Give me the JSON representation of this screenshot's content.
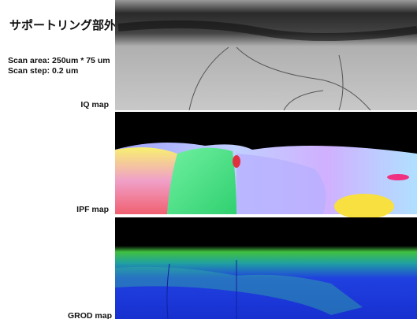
{
  "title": "サポートリング部外周",
  "scan_info": {
    "area": "Scan area: 250um * 75 um",
    "step": "Scan step: 0.2 um"
  },
  "panels": [
    {
      "label": "IQ map"
    },
    {
      "label": "IPF map"
    },
    {
      "label": "GROD map"
    }
  ]
}
